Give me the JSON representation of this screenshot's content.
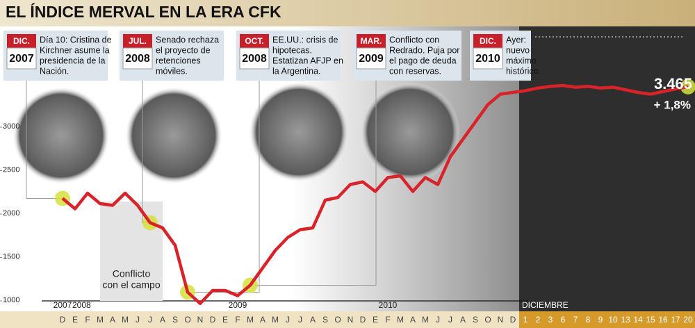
{
  "chart_data": {
    "type": "line",
    "title": "EL ÍNDICE MERVAL EN LA ERA CFK",
    "categories": [
      "D",
      "E",
      "F",
      "M",
      "A",
      "M",
      "J",
      "J",
      "A",
      "S",
      "O",
      "N",
      "D",
      "E",
      "F",
      "M",
      "A",
      "M",
      "J",
      "J",
      "A",
      "S",
      "O",
      "N",
      "D",
      "E",
      "F",
      "M",
      "A",
      "M",
      "J",
      "J",
      "A",
      "S",
      "O",
      "N",
      "D",
      "1",
      "2",
      "3",
      "6",
      "7",
      "8",
      "9",
      "10",
      "13",
      "14",
      "15",
      "16",
      "17",
      "20"
    ],
    "series": [
      {
        "name": "Merval",
        "color": "#d8232a",
        "values": [
          2180,
          2060,
          2240,
          2120,
          2100,
          2240,
          2100,
          1900,
          1840,
          1640,
          1100,
          970,
          1120,
          1120,
          1060,
          1180,
          1380,
          1580,
          1730,
          1820,
          1840,
          2160,
          2190,
          2340,
          2370,
          2260,
          2420,
          2440,
          2260,
          2420,
          2340,
          2660,
          2860,
          3060,
          3260,
          3380,
          3400,
          3420,
          3450,
          3470,
          3480,
          3460,
          3470,
          3450,
          3460,
          3430,
          3400,
          3380,
          3410,
          3440,
          3465
        ],
        "value_labels": [
          null,
          null,
          null,
          null,
          null,
          null,
          null,
          null,
          null,
          null,
          null,
          null,
          null,
          null,
          null,
          null,
          null,
          null,
          null,
          null,
          null,
          null,
          null,
          null,
          null,
          null,
          null,
          null,
          null,
          null,
          null,
          null,
          null,
          null,
          null,
          null,
          null,
          null,
          null,
          null,
          null,
          null,
          null,
          null,
          null,
          null,
          null,
          null,
          null,
          null,
          "3.465"
        ]
      }
    ],
    "change_label": "+ 1,8%",
    "ylim": [
      1000,
      4000
    ],
    "yticks": [
      1000,
      1500,
      2000,
      2500,
      3000
    ],
    "grid": false,
    "year_labels": [
      "2007",
      "2008",
      "2009",
      "2010",
      "DICIEMBRE"
    ],
    "shaded_note": [
      "Conflicto",
      "con el campo"
    ],
    "annotations": [
      {
        "month": "DIC.",
        "year": "2007",
        "text": [
          "Día 10: Cristina de",
          "Kirchner asume la",
          "presidencia de la",
          "Nación."
        ]
      },
      {
        "month": "JUL.",
        "year": "2008",
        "text": [
          "Senado rechaza",
          "el proyecto de",
          "retenciones",
          "móviles."
        ]
      },
      {
        "month": "OCT.",
        "year": "2008",
        "text": [
          "EE.UU.: crisis de",
          "hipotecas.",
          "Estatizan AFJP en",
          "la Argentina."
        ]
      },
      {
        "month": "MAR.",
        "year": "2009",
        "text": [
          "Conflicto con",
          "Redrado. Puja por",
          "el pago de deuda",
          "con reservas."
        ]
      },
      {
        "month": "DIC.",
        "year": "2010",
        "text": [
          "Ayer:",
          "nuevo",
          "máximo",
          "histórico."
        ]
      }
    ]
  }
}
